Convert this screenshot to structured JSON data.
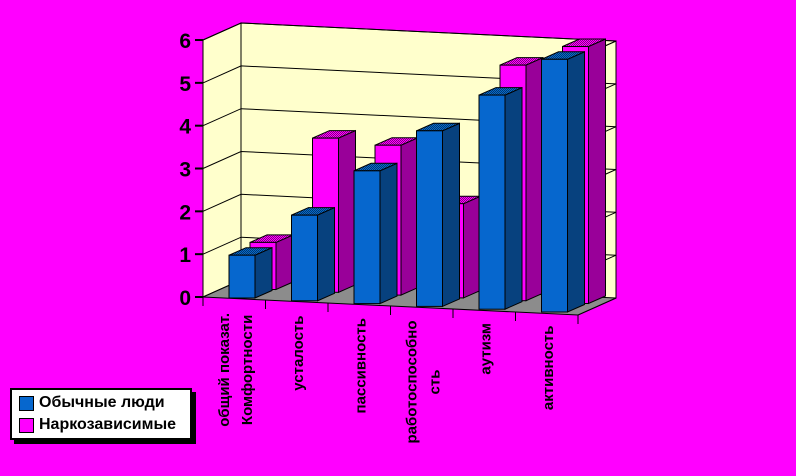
{
  "background_color": "#FF00FF",
  "chart_data": {
    "type": "bar",
    "variant": "3d-clustered-column",
    "title": "",
    "xlabel": "",
    "ylabel": "",
    "categories": [
      "общий показат. Комфортности",
      "усталость",
      "пассивность",
      "работоспособность",
      "аутизм",
      "активность"
    ],
    "category_label_lines": [
      [
        "общий показат.",
        "Комфортности"
      ],
      [
        "усталость"
      ],
      [
        "пассивность"
      ],
      [
        "работоспособно",
        "сть"
      ],
      [
        "аутизм"
      ],
      [
        "активность"
      ]
    ],
    "series": [
      {
        "name": "Обычные люди",
        "color": "#0667CE",
        "side_color": "#07417E",
        "dark_color": "#033A6B",
        "values": [
          1.0,
          2.0,
          3.1,
          4.1,
          5.0,
          5.9
        ]
      },
      {
        "name": "Наркозависимые",
        "color": "#FF00FF",
        "side_color": "#990099",
        "dark_color": "#860086",
        "values": [
          1.1,
          3.6,
          3.5,
          2.2,
          5.5,
          6.0
        ]
      }
    ],
    "ylim": [
      0,
      6
    ],
    "ytick_interval": 1,
    "ytick_labels": [
      "0",
      "1",
      "2",
      "3",
      "4",
      "5",
      "6"
    ],
    "grid": true,
    "wall_color": "#FFFFCC",
    "floor_color": "#8C8C8C",
    "axis_color": "#000000",
    "legend_position": "bottom-left"
  },
  "legend": {
    "items": [
      {
        "label": "Обычные люди",
        "color": "#0667CE"
      },
      {
        "label": "Наркозависимые",
        "color": "#FF00FF"
      }
    ]
  }
}
